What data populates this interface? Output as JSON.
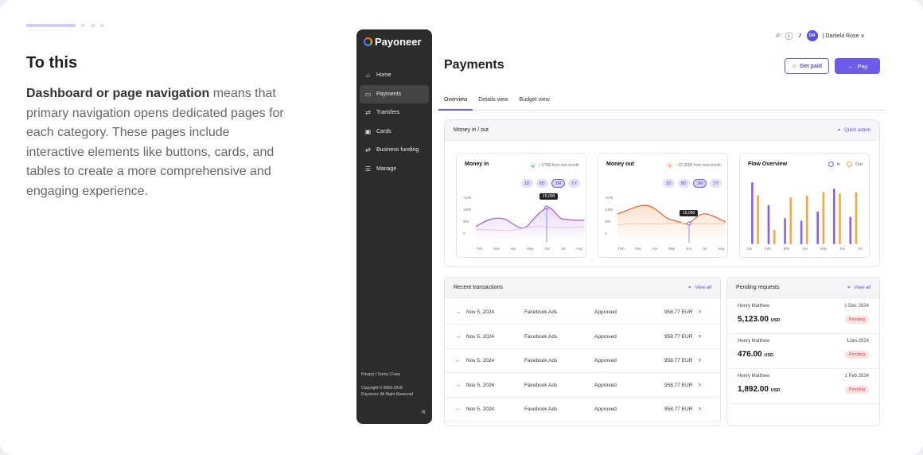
{
  "left": {
    "title": "To this",
    "para_bold": "Dashboard or page navigation",
    "para_rest": " means that primary navigation opens dedicated pages for each category. These pages include interactive elements like buttons, cards, and tables to create a more comprehensive and engaging experience."
  },
  "sidebar": {
    "logo": "Payoneer",
    "items": [
      {
        "label": "Home",
        "icon": "home-icon"
      },
      {
        "label": "Payments",
        "icon": "wallet-icon"
      },
      {
        "label": "Transfers",
        "icon": "transfer-icon"
      },
      {
        "label": "Cards",
        "icon": "card-icon"
      },
      {
        "label": "Business funding",
        "icon": "transfer-icon"
      },
      {
        "label": "Manage",
        "icon": "list-icon"
      }
    ],
    "footer_links": "Privacy | Terms | Fees",
    "copyright": "Copyright © 2009-2018",
    "rights": "Payoneer. All Right Reserved",
    "collapse": "«"
  },
  "topbar": {
    "avatar": "DR",
    "user": "| Daniela Rose ∨"
  },
  "page": {
    "title": "Payments",
    "get_paid": "Get paid",
    "pay": "Pay",
    "tabs": [
      "Overview",
      "Details view",
      "Budget view"
    ]
  },
  "money": {
    "header": "Money in / out",
    "quick_action": "Quick action",
    "money_in": {
      "title": "Money in",
      "sub": "+ 678$ from last month",
      "tooltip": "15,000"
    },
    "money_out": {
      "title": "Money out",
      "sub": "- 12,000$ from last month",
      "tooltip": "15,000"
    },
    "ranges": [
      "1D",
      "5D",
      "1M",
      "1Y"
    ],
    "y_ticks": [
      "+10K",
      "1000",
      "500",
      "0"
    ],
    "x_ticks": [
      "Feb",
      "Mar",
      "Apr",
      "May",
      "Jun",
      "Jul",
      "Aug"
    ],
    "flow": {
      "title": "Flow Overview",
      "in_label": "In",
      "out_label": "Out",
      "x_ticks": [
        "Jan",
        "Feb",
        "Mar",
        "Apr",
        "May",
        "Jun",
        "Jul"
      ]
    }
  },
  "chart_data": {
    "type": "bar",
    "title": "Flow Overview",
    "categories": [
      "Jan",
      "Feb",
      "Mar",
      "Apr",
      "May",
      "Jun",
      "Jul"
    ],
    "series": [
      {
        "name": "In",
        "values": [
          95,
          60,
          40,
          36,
          50,
          85,
          42
        ]
      },
      {
        "name": "Out",
        "values": [
          75,
          22,
          72,
          75,
          80,
          78,
          80
        ]
      }
    ],
    "colors": {
      "In": "#8a5cf0",
      "Out": "#f5a83a"
    }
  },
  "transactions": {
    "header": "Recent transactions",
    "view_all": "View all",
    "rows": [
      {
        "dir": "in",
        "date": "Nov 5, 2024",
        "merchant": "Facebook Ads",
        "status": "Approved",
        "amount": "958.77 EUR"
      },
      {
        "dir": "in",
        "date": "Nov 5, 2024",
        "merchant": "Facebook Ads",
        "status": "Approved",
        "amount": "958.77 EUR"
      },
      {
        "dir": "out",
        "date": "Nov 5, 2024",
        "merchant": "Facebook Ads",
        "status": "Approved",
        "amount": "958.77 EUR"
      },
      {
        "dir": "in",
        "date": "Nov 5, 2024",
        "merchant": "Facebook Ads",
        "status": "Approved",
        "amount": "958.77 EUR"
      },
      {
        "dir": "out",
        "date": "Nov 5, 2024",
        "merchant": "Facebook Ads",
        "status": "Approved",
        "amount": "958.77 EUR"
      }
    ]
  },
  "pending": {
    "header": "Pending requests",
    "view_all": "View all",
    "items": [
      {
        "name": "Henry Matthew",
        "date": "1 Dec 2024",
        "amount": "5,123.00",
        "currency": "USD",
        "status": "Pending"
      },
      {
        "name": "Henry Matthew",
        "date": "1Jan 2024",
        "amount": "476.00",
        "currency": "USD",
        "status": "Pending"
      },
      {
        "name": "Henry Matthew",
        "date": "1 Feb 2024",
        "amount": "1,892.00",
        "currency": "USD",
        "status": "Pending"
      }
    ]
  }
}
